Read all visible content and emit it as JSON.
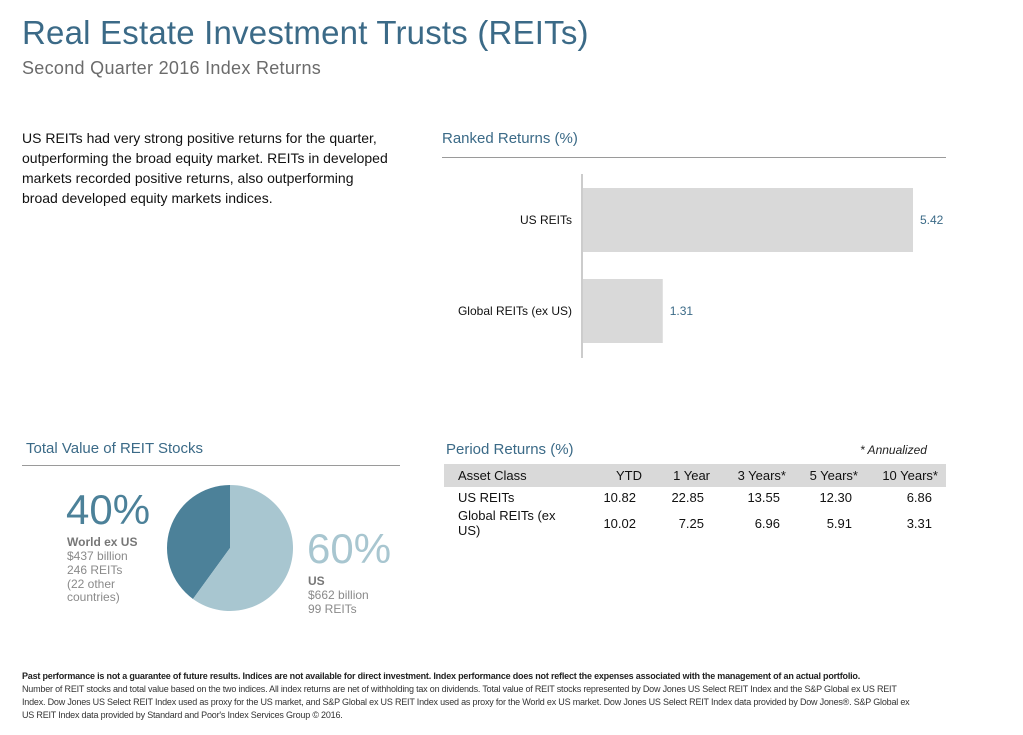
{
  "header": {
    "title": "Real Estate Investment Trusts (REITs)",
    "subtitle": "Second Quarter 2016 Index Returns"
  },
  "intro": "US REITs had very strong positive returns for the quarter, outperforming the broad equity market. REITs in developed markets recorded positive returns, also outperforming broad developed equity markets indices.",
  "ranked": {
    "title": "Ranked Returns (%)"
  },
  "chart_data": [
    {
      "type": "bar",
      "orientation": "horizontal",
      "title": "Ranked Returns (%)",
      "categories": [
        "US REITs",
        "Global REITs (ex US)"
      ],
      "values": [
        5.42,
        1.31
      ],
      "value_labels": [
        "5.42",
        "1.31"
      ],
      "bar_color": "#d9d9d9",
      "label_color": "#3b6a87"
    },
    {
      "type": "pie",
      "title": "Total Value of REIT Stocks",
      "slices": [
        {
          "name": "World ex US",
          "value": 40,
          "color": "#4c8199"
        },
        {
          "name": "US",
          "value": 60,
          "color": "#a8c6d0"
        }
      ]
    },
    {
      "type": "table",
      "title": "Period Returns (%)",
      "columns": [
        "Asset Class",
        "YTD",
        "1 Year",
        "3 Years*",
        "5 Years*",
        "10 Years*"
      ],
      "rows": [
        [
          "US REITs",
          "10.82",
          "22.85",
          "13.55",
          "12.30",
          "6.86"
        ],
        [
          "Global REITs (ex US)",
          "10.02",
          "7.25",
          "6.96",
          "5.91",
          "3.31"
        ]
      ]
    }
  ],
  "total_value": {
    "title": "Total Value of REIT Stocks",
    "world": {
      "pct": "40%",
      "name": "World ex US",
      "value": "$437 billion",
      "count": "246 REITs",
      "countries_1": "(22 other",
      "countries_2": "countries)"
    },
    "us": {
      "pct": "60%",
      "name": "US",
      "value": "$662 billion",
      "count": "99 REITs"
    }
  },
  "period": {
    "title": "Period Returns (%)",
    "annotation": "* Annualized"
  },
  "footer": {
    "bold": "Past performance is not a guarantee of future results. Indices are not available for direct investment. Index performance does not reflect the expenses associated with the management of an actual portfolio.",
    "line1": "Number of REIT stocks and total value based on the two indices. All index returns are net of withholding tax on dividends. Total value of REIT stocks represented by Dow Jones US Select REIT Index and the S&P Global ex US REIT Index. Dow Jones US Select REIT Index used as proxy for the US market, and S&P Global ex US REIT Index used as proxy for the World ex US market. Dow Jones US Select REIT Index data provided by Dow Jones®. S&P Global ex US REIT Index data provided by Standard and Poor's Index Services Group © 2016."
  }
}
